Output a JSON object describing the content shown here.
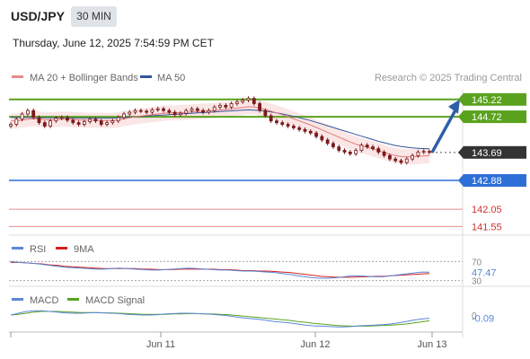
{
  "header": {
    "symbol": "USD/JPY",
    "interval": "30 MIN",
    "datetime": "Thursday, June 12, 2025 7:54:59 PM CET"
  },
  "legend": {
    "ma20": "MA 20 + Bollinger Bands",
    "ma50": "MA 50",
    "credit": "Research © 2025 Trading Central"
  },
  "colors": {
    "resistance": "#5aa21e",
    "support": "#2d6fd6",
    "target_red": "#e48b8b",
    "ma20": "#e27979",
    "ma50": "#33569a",
    "band_fill": "#fbe3e3",
    "candle": "#7a1a1a",
    "arrow": "#2f5ea8",
    "rsi": "#5b87d6",
    "rsi_ma": "#d02020",
    "macd": "#5b87d6",
    "macd_signal": "#58a51f",
    "price_tag": "#333333"
  },
  "chart_data": [
    {
      "type": "candlestick",
      "title": "USD/JPY",
      "ylim": [
        141.3,
        145.5
      ],
      "x_ticks": [
        "Jun 11",
        "Jun 12",
        "Jun 13"
      ],
      "current_price": 143.69,
      "levels": [
        {
          "value": 145.22,
          "label": "145.22",
          "kind": "resistance"
        },
        {
          "value": 144.72,
          "label": "144.72",
          "kind": "resistance"
        },
        {
          "value": 143.69,
          "label": "143.69",
          "kind": "current"
        },
        {
          "value": 142.88,
          "label": "142.88",
          "kind": "support"
        },
        {
          "value": 142.05,
          "label": "142.05",
          "kind": "target"
        },
        {
          "value": 141.55,
          "label": "141.55",
          "kind": "target"
        }
      ],
      "closes": [
        144.5,
        144.65,
        144.8,
        144.9,
        144.7,
        144.55,
        144.45,
        144.6,
        144.68,
        144.7,
        144.62,
        144.55,
        144.5,
        144.58,
        144.65,
        144.6,
        144.5,
        144.55,
        144.6,
        144.7,
        144.8,
        144.85,
        144.9,
        144.88,
        144.85,
        144.92,
        144.95,
        144.9,
        144.85,
        144.78,
        144.82,
        144.9,
        144.95,
        144.9,
        144.85,
        144.9,
        145.0,
        145.05,
        145.0,
        145.1,
        145.15,
        145.2,
        145.25,
        145.1,
        144.9,
        144.75,
        144.6,
        144.55,
        144.5,
        144.45,
        144.4,
        144.35,
        144.3,
        144.25,
        144.15,
        144.05,
        143.95,
        143.85,
        143.75,
        143.7,
        143.65,
        143.75,
        143.9,
        143.85,
        143.8,
        143.7,
        143.6,
        143.5,
        143.45,
        143.4,
        143.5,
        143.6,
        143.7,
        143.72,
        143.69
      ],
      "ma20": [
        144.6,
        144.6,
        144.62,
        144.65,
        144.66,
        144.65,
        144.64,
        144.63,
        144.64,
        144.65,
        144.65,
        144.64,
        144.63,
        144.62,
        144.62,
        144.62,
        144.61,
        144.61,
        144.61,
        144.63,
        144.66,
        144.69,
        144.72,
        144.74,
        144.76,
        144.78,
        144.8,
        144.82,
        144.83,
        144.83,
        144.84,
        144.85,
        144.86,
        144.87,
        144.88,
        144.89,
        144.9,
        144.92,
        144.93,
        144.95,
        144.97,
        144.99,
        145.01,
        145.0,
        144.97,
        144.93,
        144.88,
        144.83,
        144.78,
        144.72,
        144.66,
        144.6,
        144.54,
        144.48,
        144.41,
        144.34,
        144.27,
        144.2,
        144.13,
        144.06,
        143.99,
        143.93,
        143.88,
        143.84,
        143.79,
        143.74,
        143.69,
        143.64,
        143.6,
        143.57,
        143.56,
        143.56,
        143.57,
        143.59,
        143.6
      ],
      "ma50": [
        144.7,
        144.7,
        144.7,
        144.7,
        144.7,
        144.69,
        144.69,
        144.69,
        144.69,
        144.69,
        144.69,
        144.68,
        144.68,
        144.68,
        144.68,
        144.68,
        144.68,
        144.68,
        144.68,
        144.69,
        144.7,
        144.71,
        144.72,
        144.73,
        144.74,
        144.75,
        144.76,
        144.77,
        144.78,
        144.79,
        144.8,
        144.81,
        144.82,
        144.83,
        144.84,
        144.85,
        144.86,
        144.87,
        144.88,
        144.89,
        144.9,
        144.91,
        144.92,
        144.91,
        144.9,
        144.88,
        144.86,
        144.83,
        144.8,
        144.77,
        144.73,
        144.69,
        144.65,
        144.61,
        144.56,
        144.51,
        144.46,
        144.41,
        144.36,
        144.31,
        144.26,
        144.21,
        144.16,
        144.11,
        144.06,
        144.01,
        143.97,
        143.93,
        143.89,
        143.86,
        143.84,
        143.82,
        143.81,
        143.8,
        143.8
      ]
    },
    {
      "type": "line",
      "title": "RSI",
      "ylim": [
        20,
        80
      ],
      "y_ticks": [
        30,
        70
      ],
      "last_value": 47.47,
      "series": [
        {
          "name": "RSI",
          "values": [
            70,
            68,
            67,
            66,
            64,
            62,
            60,
            58,
            57,
            56,
            55,
            54,
            54,
            55,
            56,
            55,
            54,
            53,
            52,
            52,
            53,
            54,
            55,
            56,
            55,
            54,
            53,
            52,
            52,
            51,
            50,
            50,
            49,
            48,
            47,
            45,
            43,
            40,
            38,
            36,
            35,
            35,
            36,
            38,
            40,
            40,
            39,
            38,
            38,
            40,
            42,
            44,
            46,
            48,
            47.47
          ]
        },
        {
          "name": "9MA",
          "values": [
            68,
            68,
            67,
            66,
            65,
            63,
            62,
            60,
            59,
            58,
            57,
            56,
            55,
            55,
            55,
            55,
            55,
            54,
            54,
            53,
            53,
            53,
            54,
            54,
            54,
            54,
            54,
            53,
            53,
            52,
            51,
            51,
            50,
            50,
            49,
            48,
            47,
            45,
            43,
            41,
            39,
            38,
            37,
            37,
            37,
            38,
            38,
            39,
            39,
            40,
            41,
            42,
            43,
            44,
            45
          ]
        }
      ]
    },
    {
      "type": "line",
      "title": "MACD",
      "ylim": [
        -0.45,
        0.2
      ],
      "y_ticks": [
        0
      ],
      "last_value": -0.09,
      "series": [
        {
          "name": "MACD",
          "values": [
            0.0,
            0.05,
            0.1,
            0.12,
            0.12,
            0.1,
            0.08,
            0.06,
            0.05,
            0.05,
            0.06,
            0.07,
            0.06,
            0.05,
            0.04,
            0.02,
            0.01,
            0.0,
            0.0,
            0.01,
            0.03,
            0.04,
            0.05,
            0.05,
            0.04,
            0.03,
            0.02,
            0.0,
            -0.02,
            -0.05,
            -0.08,
            -0.1,
            -0.12,
            -0.15,
            -0.18,
            -0.2,
            -0.22,
            -0.25,
            -0.28,
            -0.3,
            -0.31,
            -0.32,
            -0.33,
            -0.33,
            -0.32,
            -0.3,
            -0.29,
            -0.28,
            -0.27,
            -0.25,
            -0.22,
            -0.18,
            -0.14,
            -0.11,
            -0.09
          ]
        },
        {
          "name": "MACD Signal",
          "values": [
            0.0,
            0.02,
            0.05,
            0.08,
            0.1,
            0.1,
            0.1,
            0.09,
            0.08,
            0.07,
            0.07,
            0.07,
            0.06,
            0.06,
            0.05,
            0.04,
            0.03,
            0.02,
            0.02,
            0.02,
            0.02,
            0.03,
            0.03,
            0.04,
            0.04,
            0.03,
            0.03,
            0.02,
            0.01,
            -0.01,
            -0.03,
            -0.05,
            -0.07,
            -0.09,
            -0.11,
            -0.13,
            -0.15,
            -0.18,
            -0.2,
            -0.23,
            -0.25,
            -0.27,
            -0.29,
            -0.3,
            -0.31,
            -0.31,
            -0.31,
            -0.3,
            -0.29,
            -0.28,
            -0.27,
            -0.25,
            -0.22,
            -0.19,
            -0.16
          ]
        }
      ]
    }
  ]
}
